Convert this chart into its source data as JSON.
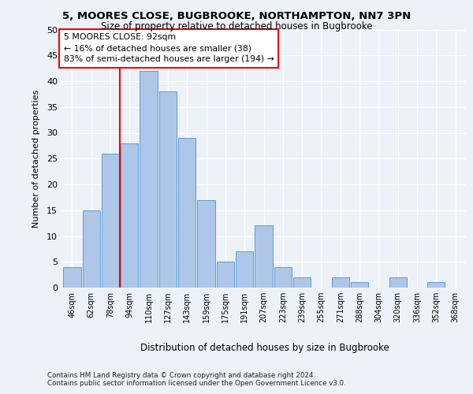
{
  "title1": "5, MOORES CLOSE, BUGBROOKE, NORTHAMPTON, NN7 3PN",
  "title2": "Size of property relative to detached houses in Bugbrooke",
  "xlabel": "Distribution of detached houses by size in Bugbrooke",
  "ylabel": "Number of detached properties",
  "categories": [
    "46sqm",
    "62sqm",
    "78sqm",
    "94sqm",
    "110sqm",
    "127sqm",
    "143sqm",
    "159sqm",
    "175sqm",
    "191sqm",
    "207sqm",
    "223sqm",
    "239sqm",
    "255sqm",
    "271sqm",
    "288sqm",
    "304sqm",
    "320sqm",
    "336sqm",
    "352sqm",
    "368sqm"
  ],
  "values": [
    4,
    15,
    26,
    28,
    42,
    38,
    29,
    17,
    5,
    7,
    12,
    4,
    2,
    0,
    2,
    1,
    0,
    2,
    0,
    1,
    0
  ],
  "bar_color": "#aec6e8",
  "bar_edge_color": "#5a9fd4",
  "red_line_x": 2.5,
  "annotation_text": "5 MOORES CLOSE: 92sqm\n← 16% of detached houses are smaller (38)\n83% of semi-detached houses are larger (194) →",
  "ylim": [
    0,
    50
  ],
  "yticks": [
    0,
    5,
    10,
    15,
    20,
    25,
    30,
    35,
    40,
    45,
    50
  ],
  "bg_color": "#edf2f9",
  "grid_color": "#ffffff",
  "footer1": "Contains HM Land Registry data © Crown copyright and database right 2024.",
  "footer2": "Contains public sector information licensed under the Open Government Licence v3.0."
}
